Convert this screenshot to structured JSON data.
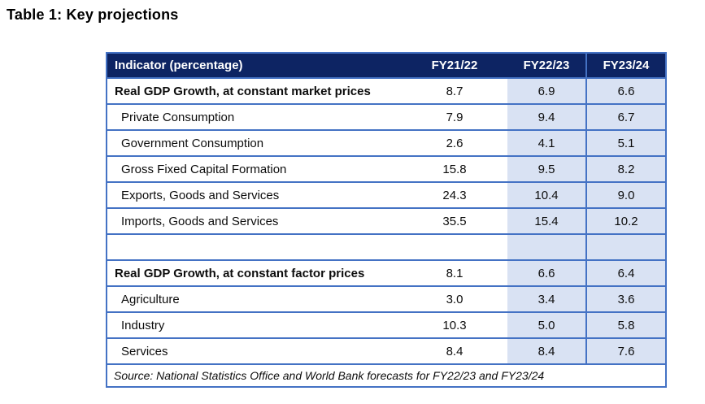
{
  "title": "Table 1: Key projections",
  "colors": {
    "header_bg": "#0D2463",
    "header_text": "#FFFFFF",
    "column_shade": "#D9E2F3",
    "grid_border": "#4472C4",
    "body_text": "#000000"
  },
  "table": {
    "columns": [
      "Indicator (percentage)",
      "FY21/22",
      "FY22/23",
      "FY23/24"
    ],
    "rows": [
      {
        "label": "Real GDP Growth, at constant market prices",
        "values": [
          "8.7",
          "6.9",
          "6.6"
        ]
      },
      {
        "label": "Private Consumption",
        "values": [
          "7.9",
          "9.4",
          "6.7"
        ]
      },
      {
        "label": "Government Consumption",
        "values": [
          "2.6",
          "4.1",
          "5.1"
        ]
      },
      {
        "label": "Gross Fixed Capital Formation",
        "values": [
          "15.8",
          "9.5",
          "8.2"
        ]
      },
      {
        "label": "Exports, Goods and Services",
        "values": [
          "24.3",
          "10.4",
          "9.0"
        ]
      },
      {
        "label": "Imports, Goods and Services",
        "values": [
          "35.5",
          "15.4",
          "10.2"
        ]
      },
      {
        "label": "",
        "values": [
          "",
          "",
          ""
        ]
      },
      {
        "label": "Real GDP Growth, at constant factor prices",
        "values": [
          "8.1",
          "6.6",
          "6.4"
        ]
      },
      {
        "label": "Agriculture",
        "values": [
          "3.0",
          "3.4",
          "3.6"
        ]
      },
      {
        "label": "Industry",
        "values": [
          "10.3",
          "5.0",
          "5.8"
        ]
      },
      {
        "label": "Services",
        "values": [
          "8.4",
          "8.4",
          "7.6"
        ]
      }
    ],
    "source": "Source: National Statistics Office and World Bank forecasts for FY22/23 and FY23/24"
  }
}
